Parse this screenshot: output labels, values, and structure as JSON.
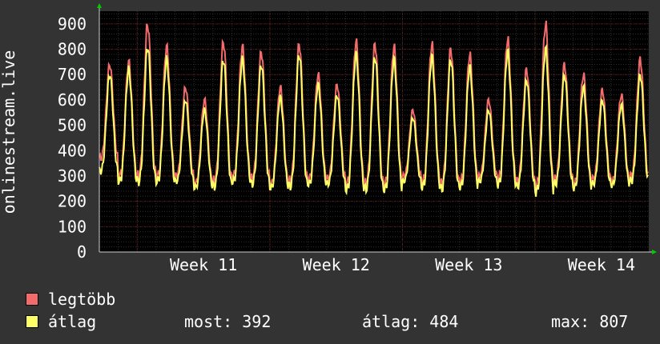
{
  "chart_data": {
    "type": "line",
    "ylabel": "onlinestream.live",
    "ylim": [
      0,
      950
    ],
    "y_ticks": [
      0,
      100,
      200,
      300,
      400,
      500,
      600,
      700,
      800,
      900
    ],
    "x_ticks": [
      "Week 11",
      "Week 12",
      "Week 13",
      "Week 14"
    ],
    "grid": true,
    "colors": {
      "background": "#000000",
      "frame": "#333333",
      "grid_major": "#5a1a1a",
      "grid_minor": "#2e2e2e",
      "axis_arrow": "#00cc00",
      "max_series": "#f46b6b",
      "avg_series": "#ffff66"
    },
    "days": 29,
    "series": [
      {
        "name": "legtöbb",
        "daily_peaks": [
          740,
          750,
          900,
          810,
          650,
          600,
          830,
          810,
          790,
          650,
          820,
          700,
          660,
          830,
          820,
          810,
          560,
          820,
          800,
          780,
          600,
          840,
          720,
          900,
          740,
          700,
          640,
          620,
          760
        ],
        "daily_lows": [
          370,
          300,
          300,
          300,
          300,
          270,
          280,
          300,
          290,
          270,
          280,
          290,
          290,
          270,
          270,
          270,
          300,
          280,
          270,
          280,
          300,
          290,
          280,
          260,
          290,
          270,
          290,
          280,
          300
        ]
      },
      {
        "name": "átlag",
        "daily_peaks": [
          700,
          720,
          810,
          760,
          600,
          560,
          760,
          760,
          740,
          610,
          780,
          660,
          620,
          780,
          770,
          760,
          530,
          770,
          760,
          730,
          560,
          790,
          680,
          800,
          700,
          650,
          600,
          580,
          700
        ],
        "daily_lows": [
          320,
          280,
          280,
          280,
          280,
          255,
          260,
          280,
          270,
          255,
          260,
          270,
          270,
          250,
          250,
          250,
          280,
          260,
          250,
          260,
          280,
          270,
          260,
          240,
          270,
          255,
          270,
          265,
          280
        ]
      }
    ]
  },
  "legend": {
    "max_label": "legtöbb",
    "avg_label": "átlag"
  },
  "stats": {
    "current": "most: 392",
    "average": "átlag: 484",
    "max": "max: 807"
  }
}
